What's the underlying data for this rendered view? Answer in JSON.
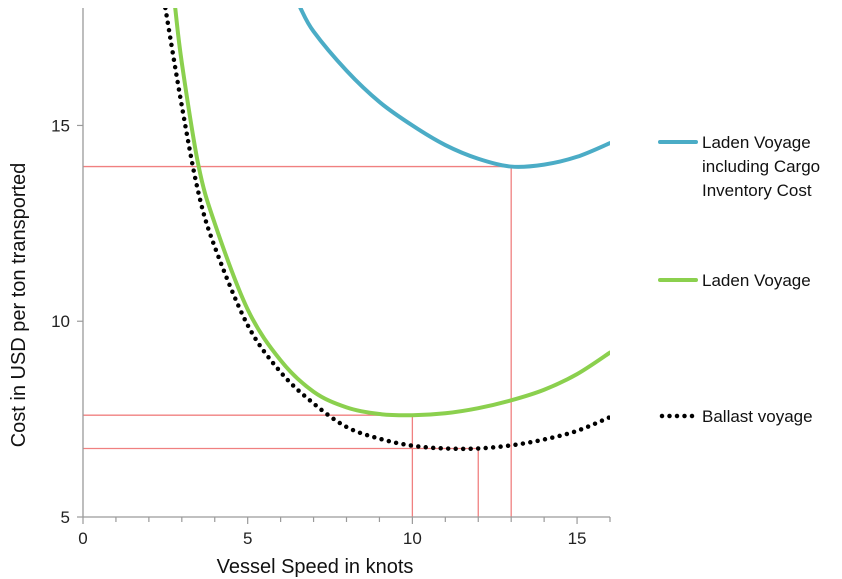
{
  "chart_data": {
    "type": "line",
    "xlabel": "Vessel Speed in knots",
    "ylabel": "Cost in USD per ton transported",
    "xlim": [
      0,
      16
    ],
    "ylim": [
      5,
      18
    ],
    "xticks": [
      0,
      5,
      10,
      15
    ],
    "yticks": [
      5,
      10,
      15
    ],
    "grid": false,
    "legend_position": "right",
    "series": [
      {
        "name": "Laden Voyage including Cargo Inventory Cost",
        "color": "#4BACC6",
        "style": "solid",
        "x": [
          6.6,
          7,
          8,
          9,
          10,
          11,
          12,
          13,
          14,
          15,
          16
        ],
        "y": [
          18.0,
          17.4,
          16.4,
          15.6,
          15.0,
          14.5,
          14.15,
          13.95,
          14.0,
          14.2,
          14.55
        ]
      },
      {
        "name": "Laden Voyage",
        "color": "#8BD04E",
        "style": "solid",
        "x": [
          2.8,
          3,
          3.5,
          4,
          5,
          6,
          7,
          8,
          9,
          10,
          11,
          12,
          13,
          14,
          15,
          16
        ],
        "y": [
          18.0,
          16.6,
          14.0,
          12.5,
          10.3,
          9.0,
          8.2,
          7.8,
          7.63,
          7.6,
          7.65,
          7.78,
          7.98,
          8.25,
          8.65,
          9.2
        ]
      },
      {
        "name": "Ballast voyage",
        "color": "#000000",
        "style": "dotted",
        "x": [
          2.5,
          3,
          3.5,
          4,
          5,
          6,
          7,
          8,
          9,
          10,
          11,
          12,
          13,
          14,
          15,
          16
        ],
        "y": [
          18.0,
          15.5,
          13.3,
          11.9,
          9.9,
          8.7,
          7.9,
          7.3,
          7.0,
          6.82,
          6.75,
          6.75,
          6.83,
          6.98,
          7.2,
          7.55
        ]
      }
    ],
    "reference_lines": [
      {
        "x": 13.0,
        "y": 13.95
      },
      {
        "x": 10.0,
        "y": 7.6
      },
      {
        "x": 12.0,
        "y": 6.75
      }
    ],
    "reference_color": "#F08080"
  }
}
